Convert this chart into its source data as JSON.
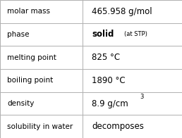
{
  "rows": [
    {
      "label": "molar mass",
      "value": "465.958 g/mol",
      "value_extra": null,
      "superscript": null
    },
    {
      "label": "phase",
      "value": "solid",
      "value_extra": "(at STP)",
      "superscript": null
    },
    {
      "label": "melting point",
      "value": "825 °C",
      "value_extra": null,
      "superscript": null
    },
    {
      "label": "boiling point",
      "value": "1890 °C",
      "value_extra": null,
      "superscript": null
    },
    {
      "label": "density",
      "value": "8.9 g/cm",
      "value_extra": null,
      "superscript": "3"
    },
    {
      "label": "solubility in water",
      "value": "decomposes",
      "value_extra": null,
      "superscript": null
    }
  ],
  "bg_color": "#ffffff",
  "border_color": "#b0b0b0",
  "text_color": "#000000",
  "label_fontsize": 7.5,
  "value_fontsize": 8.5,
  "extra_fontsize": 6.0,
  "sup_fontsize": 6.0,
  "col_split": 0.455
}
